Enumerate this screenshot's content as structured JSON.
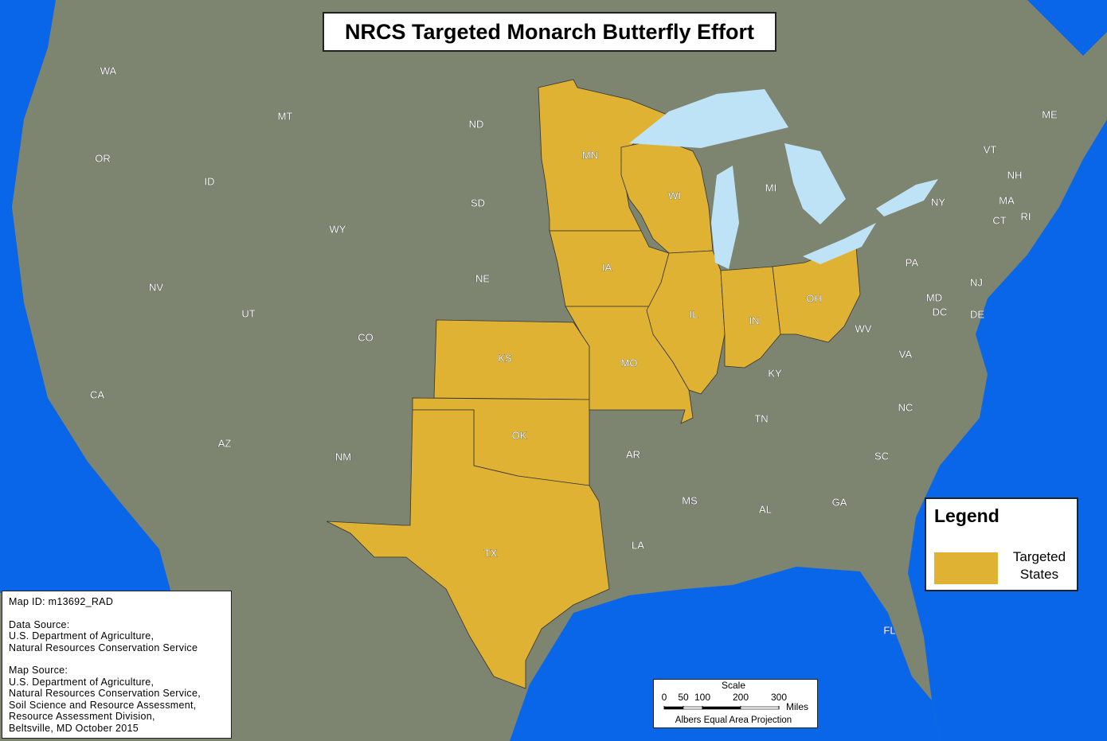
{
  "title": "NRCS Targeted Monarch Butterfly Effort",
  "states": [
    {
      "label": "WA",
      "targeted": false
    },
    {
      "label": "OR",
      "targeted": false
    },
    {
      "label": "CA",
      "targeted": false
    },
    {
      "label": "NV",
      "targeted": false
    },
    {
      "label": "ID",
      "targeted": false
    },
    {
      "label": "MT",
      "targeted": false
    },
    {
      "label": "WY",
      "targeted": false
    },
    {
      "label": "UT",
      "targeted": false
    },
    {
      "label": "AZ",
      "targeted": false
    },
    {
      "label": "CO",
      "targeted": false
    },
    {
      "label": "NM",
      "targeted": false
    },
    {
      "label": "ND",
      "targeted": false
    },
    {
      "label": "SD",
      "targeted": false
    },
    {
      "label": "NE",
      "targeted": false
    },
    {
      "label": "KS",
      "targeted": true
    },
    {
      "label": "OK",
      "targeted": true
    },
    {
      "label": "TX",
      "targeted": true
    },
    {
      "label": "MN",
      "targeted": true
    },
    {
      "label": "IA",
      "targeted": true
    },
    {
      "label": "MO",
      "targeted": true
    },
    {
      "label": "AR",
      "targeted": false
    },
    {
      "label": "LA",
      "targeted": false
    },
    {
      "label": "WI",
      "targeted": true
    },
    {
      "label": "IL",
      "targeted": true
    },
    {
      "label": "MS",
      "targeted": false
    },
    {
      "label": "MI",
      "targeted": false
    },
    {
      "label": "IN",
      "targeted": true
    },
    {
      "label": "OH",
      "targeted": true
    },
    {
      "label": "KY",
      "targeted": false
    },
    {
      "label": "TN",
      "targeted": false
    },
    {
      "label": "AL",
      "targeted": false
    },
    {
      "label": "GA",
      "targeted": false
    },
    {
      "label": "FL",
      "targeted": false
    },
    {
      "label": "SC",
      "targeted": false
    },
    {
      "label": "NC",
      "targeted": false
    },
    {
      "label": "VA",
      "targeted": false
    },
    {
      "label": "WV",
      "targeted": false
    },
    {
      "label": "PA",
      "targeted": false
    },
    {
      "label": "NY",
      "targeted": false
    },
    {
      "label": "ME",
      "targeted": false
    },
    {
      "label": "VT",
      "targeted": false
    },
    {
      "label": "NH",
      "targeted": false
    },
    {
      "label": "MA",
      "targeted": false
    },
    {
      "label": "CT",
      "targeted": false
    },
    {
      "label": "RI",
      "targeted": false
    },
    {
      "label": "NJ",
      "targeted": false
    },
    {
      "label": "DE",
      "targeted": false
    },
    {
      "label": "MD",
      "targeted": false
    },
    {
      "label": "DC",
      "targeted": false
    }
  ],
  "legend": {
    "title": "Legend",
    "items": [
      {
        "label": "Targeted States",
        "color": "#dfb233"
      }
    ]
  },
  "info": {
    "map_id": "Map ID:   m13692_RAD",
    "data_source": [
      "Data Source:",
      "U.S. Department of Agriculture,",
      "Natural Resources Conservation Service"
    ],
    "map_source": [
      "Map Source:",
      "U.S. Department of Agriculture,",
      "Natural Resources Conservation Service,",
      "Soil Science and Resource Assessment,",
      "Resource Assessment Division,",
      "Beltsville, MD   October 2015"
    ]
  },
  "scale": {
    "title": "Scale",
    "ticks": [
      0,
      50,
      100,
      200,
      300
    ],
    "unit": "Miles",
    "projection": "Albers Equal Area Projection"
  }
}
